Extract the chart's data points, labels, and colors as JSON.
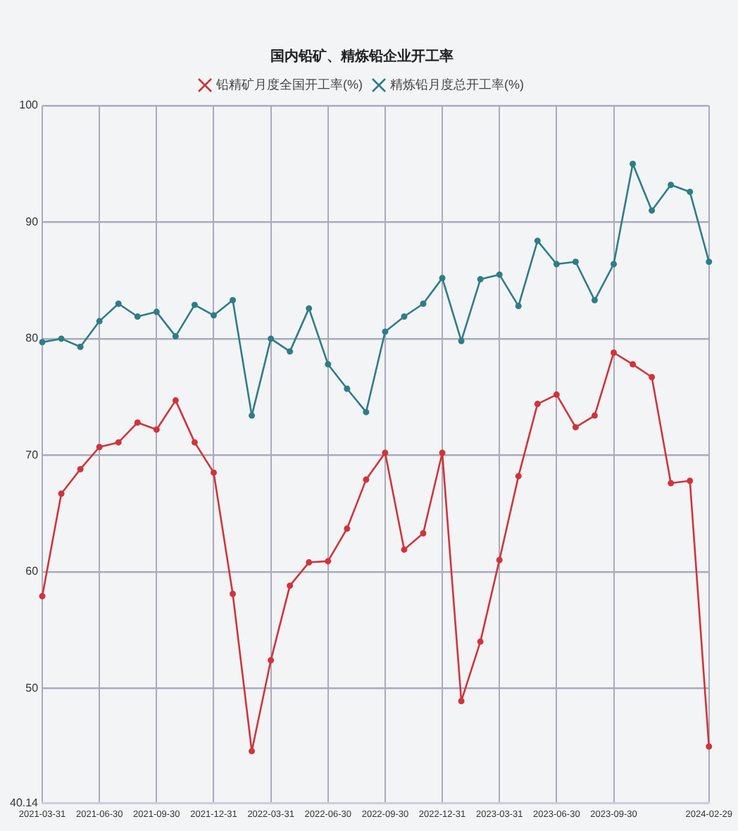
{
  "chart_data": {
    "type": "line",
    "title": "国内铅矿、精炼铅企业开工率",
    "categories": [
      "2021-03-31",
      null,
      null,
      "2021-06-30",
      null,
      null,
      "2021-09-30",
      null,
      null,
      "2021-12-31",
      null,
      null,
      "2022-03-31",
      null,
      null,
      "2022-06-30",
      null,
      null,
      "2022-09-30",
      null,
      null,
      "2022-12-31",
      null,
      null,
      "2023-03-31",
      null,
      null,
      "2023-06-30",
      null,
      null,
      "2023-09-30",
      null,
      null,
      null,
      null,
      "2024-02-29"
    ],
    "series": [
      {
        "name": "铅精矿月度全国开工率(%)",
        "color": "#d0343c",
        "values": [
          57.9,
          66.7,
          68.8,
          70.7,
          71.1,
          72.8,
          72.2,
          74.7,
          71.1,
          68.5,
          58.1,
          44.6,
          52.4,
          58.8,
          60.8,
          60.9,
          63.7,
          67.9,
          70.2,
          61.9,
          63.3,
          70.2,
          48.9,
          54.0,
          61.0,
          68.2,
          74.4,
          75.2,
          72.4,
          73.4,
          78.8,
          77.8,
          76.7,
          67.6,
          67.8,
          45.0
        ]
      },
      {
        "name": "精炼铅月度总开工率(%)",
        "color": "#2e7d87",
        "values": [
          79.7,
          80.0,
          79.3,
          81.5,
          83.0,
          81.9,
          82.3,
          80.2,
          82.9,
          82.0,
          83.3,
          73.4,
          80.0,
          78.9,
          82.6,
          77.8,
          75.7,
          73.7,
          80.6,
          81.9,
          83.0,
          85.2,
          79.8,
          85.1,
          85.5,
          82.8,
          88.4,
          86.4,
          86.6,
          83.3,
          86.4,
          95.0,
          91.0,
          93.2,
          92.6,
          86.6
        ]
      }
    ],
    "ylim": [
      40.14,
      100
    ],
    "yticks": [
      40.14,
      50,
      60,
      70,
      80,
      90,
      100
    ],
    "grid": true,
    "legend": "top",
    "marker": "circle",
    "line_style": "solid"
  }
}
